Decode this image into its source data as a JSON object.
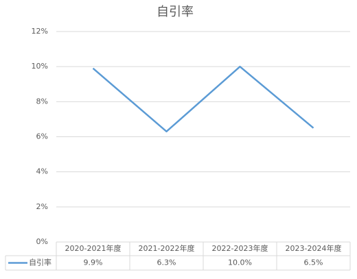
{
  "chart_data": {
    "type": "line",
    "title": "自引率",
    "categories": [
      "2020-2021年度",
      "2021-2022年度",
      "2022-2023年度",
      "2023-2024年度"
    ],
    "series": [
      {
        "name": "自引率",
        "color": "#5b9bd5",
        "values": [
          9.9,
          6.3,
          10.0,
          6.5
        ],
        "value_labels": [
          "9.9%",
          "6.3%",
          "10.0%",
          "6.5%"
        ]
      }
    ],
    "ylim": [
      0,
      12
    ],
    "yticks": [
      {
        "value": 0,
        "label": "0%"
      },
      {
        "value": 2,
        "label": "2%"
      },
      {
        "value": 4,
        "label": "4%"
      },
      {
        "value": 6,
        "label": "6%"
      },
      {
        "value": 8,
        "label": "8%"
      },
      {
        "value": 10,
        "label": "10%"
      },
      {
        "value": 12,
        "label": "12%"
      }
    ],
    "grid": true
  }
}
